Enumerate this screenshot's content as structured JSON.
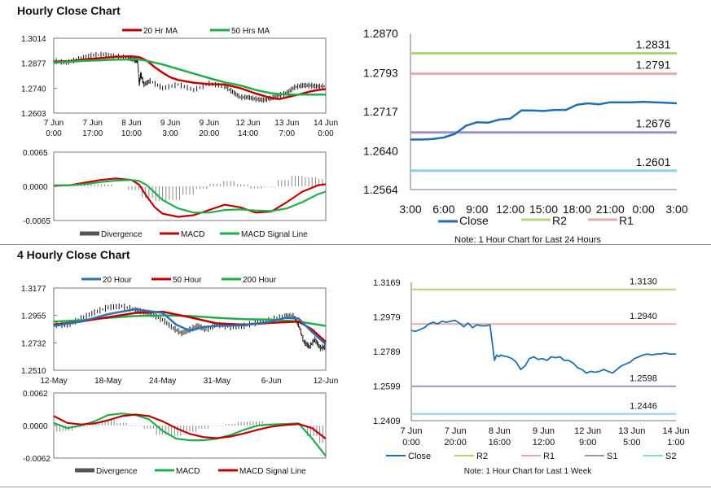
{
  "sections": {
    "hourly_title": "Hourly Close Chart",
    "four_hourly_title": "4 Hourly Close Chart"
  },
  "colors": {
    "price": "#111111",
    "red": "#c00000",
    "green": "#1fae4b",
    "blue": "#2e6fb7",
    "divergence": "#888888",
    "r2": "#b5d37c",
    "r1": "#e8a9a9",
    "s1": "#a090c0",
    "s2": "#8fd0e0",
    "close": "#1f6fb5"
  },
  "chart_data": [
    {
      "id": "hourly_price",
      "type": "line",
      "legend": [
        "20 Hr MA",
        "50 Hrs MA"
      ],
      "yticks": [
        "1.3014",
        "1.2877",
        "1.2740",
        "1.2603"
      ],
      "ylim": [
        1.2603,
        1.3014
      ],
      "xticks": [
        [
          "7 Jun",
          "0:00"
        ],
        [
          "7 Jun",
          "17:00"
        ],
        [
          "8 Jun",
          "10:00"
        ],
        [
          "9 Jun",
          "3:00"
        ],
        [
          "9 Jun",
          "20:00"
        ],
        [
          "12 Jun",
          "14:00"
        ],
        [
          "13 Jun",
          "7:00"
        ],
        [
          "14 Jun",
          "0:00"
        ]
      ],
      "xlim": [
        0,
        175
      ],
      "series": [
        {
          "name": "20 Hr MA",
          "color": "red",
          "x": [
            0,
            10,
            20,
            30,
            40,
            50,
            55,
            60,
            65,
            70,
            75,
            80,
            90,
            100,
            110,
            120,
            130,
            140,
            145,
            150,
            155,
            160,
            165,
            170,
            175
          ],
          "y": [
            1.2885,
            1.2888,
            1.2898,
            1.2905,
            1.2912,
            1.2915,
            1.291,
            1.289,
            1.2855,
            1.2825,
            1.28,
            1.2785,
            1.277,
            1.2762,
            1.276,
            1.274,
            1.271,
            1.2685,
            1.268,
            1.269,
            1.27,
            1.271,
            1.2722,
            1.273,
            1.2735
          ]
        },
        {
          "name": "50 Hrs MA",
          "color": "green",
          "x": [
            0,
            10,
            20,
            30,
            40,
            50,
            55,
            60,
            70,
            80,
            90,
            100,
            110,
            120,
            130,
            140,
            150,
            160,
            170,
            175
          ],
          "y": [
            1.288,
            1.2885,
            1.289,
            1.2893,
            1.2897,
            1.2898,
            1.2897,
            1.289,
            1.287,
            1.2845,
            1.282,
            1.2795,
            1.2772,
            1.2755,
            1.273,
            1.2712,
            1.2705,
            1.2705,
            1.2705,
            1.2705
          ]
        },
        {
          "name": "price",
          "color": "price",
          "x": [
            0,
            8,
            16,
            24,
            32,
            40,
            48,
            52,
            54,
            55,
            56,
            58,
            62,
            70,
            80,
            90,
            100,
            110,
            115,
            120,
            125,
            130,
            135,
            140,
            145,
            150,
            155,
            160,
            165,
            170,
            175
          ],
          "y": [
            1.289,
            1.288,
            1.29,
            1.292,
            1.2925,
            1.2915,
            1.2905,
            1.2895,
            1.289,
            1.276,
            1.282,
            1.276,
            1.278,
            1.274,
            1.276,
            1.273,
            1.2765,
            1.275,
            1.272,
            1.269,
            1.269,
            1.268,
            1.2675,
            1.2685,
            1.27,
            1.2715,
            1.2745,
            1.2755,
            1.2755,
            1.275,
            1.275
          ]
        }
      ]
    },
    {
      "id": "hourly_macd",
      "type": "line",
      "legend": [
        "Divergence",
        "MACD",
        "MACD Signal Line"
      ],
      "yticks": [
        "0.0065",
        "0.0000",
        "-0.0065"
      ],
      "ylim": [
        -0.0065,
        0.0065
      ],
      "xlim": [
        0,
        175
      ],
      "series": [
        {
          "name": "MACD",
          "color": "red",
          "x": [
            0,
            10,
            20,
            30,
            40,
            50,
            55,
            60,
            65,
            70,
            80,
            90,
            100,
            110,
            120,
            130,
            140,
            150,
            160,
            170,
            175
          ],
          "y": [
            0.0001,
            0.0002,
            0.0007,
            0.0012,
            0.0015,
            0.0012,
            0.0003,
            -0.002,
            -0.004,
            -0.0052,
            -0.0058,
            -0.0055,
            -0.0045,
            -0.0035,
            -0.004,
            -0.005,
            -0.0048,
            -0.003,
            -0.001,
            0.0002,
            0.0004
          ]
        },
        {
          "name": "MACD Signal Line",
          "color": "green",
          "x": [
            0,
            10,
            20,
            30,
            40,
            50,
            55,
            60,
            65,
            70,
            80,
            90,
            100,
            110,
            120,
            130,
            140,
            150,
            160,
            170,
            175
          ],
          "y": [
            0.0002,
            0.0002,
            0.0004,
            0.0008,
            0.0011,
            0.0012,
            0.001,
            0.0002,
            -0.0012,
            -0.0026,
            -0.0042,
            -0.005,
            -0.005,
            -0.0045,
            -0.0044,
            -0.0046,
            -0.0047,
            -0.0042,
            -0.003,
            -0.0015,
            -0.001
          ]
        }
      ],
      "divergence": [
        0.0,
        0.0,
        0.0003,
        0.0004,
        0.0004,
        0.0,
        -0.0007,
        -0.0022,
        -0.0028,
        -0.0026,
        -0.0016,
        -0.0005,
        0.0005,
        0.001,
        0.0004,
        -0.0004,
        -0.0001,
        0.0012,
        0.002,
        0.0017,
        0.0014
      ]
    },
    {
      "id": "hourly_levels",
      "type": "line",
      "title_note": "Note: 1 Hour Chart for Last 24 Hours",
      "yticks": [
        "1.2870",
        "1.2793",
        "1.2717",
        "1.2640",
        "1.2564"
      ],
      "ylim": [
        1.2564,
        1.287
      ],
      "categories": [
        "3:00",
        "6:00",
        "9:00",
        "12:00",
        "15:00",
        "18:00",
        "21:00",
        "0:00",
        "3:00"
      ],
      "legend": [
        "Close",
        "R2",
        "R1"
      ],
      "levels": [
        {
          "name": "R2",
          "value": 1.2831,
          "label": "1.2831",
          "color": "r2"
        },
        {
          "name": "R1",
          "value": 1.2791,
          "label": "1.2791",
          "color": "r1"
        },
        {
          "name": "S1",
          "value": 1.2676,
          "label": "1.2676",
          "color": "s1"
        },
        {
          "name": "S2",
          "value": 1.2601,
          "label": "1.2601",
          "color": "s2"
        }
      ],
      "close": [
        1.2662,
        1.2662,
        1.2663,
        1.2666,
        1.2673,
        1.2689,
        1.2696,
        1.2695,
        1.2701,
        1.2703,
        1.2719,
        1.2719,
        1.2718,
        1.272,
        1.272,
        1.273,
        1.2733,
        1.2731,
        1.2735,
        1.2735,
        1.2735,
        1.2736,
        1.2735,
        1.2734,
        1.2733
      ]
    },
    {
      "id": "four_hourly_price",
      "type": "line",
      "legend": [
        "20 Hour",
        "50 Hour",
        "200 Hour"
      ],
      "yticks": [
        "1.3177",
        "1.2955",
        "1.2732",
        "1.2510"
      ],
      "ylim": [
        1.251,
        1.3177
      ],
      "xticks": [
        "12-May",
        "18-May",
        "24-May",
        "31-May",
        "6-Jun",
        "12-Jun"
      ],
      "xlim": [
        0,
        100
      ],
      "series": [
        {
          "name": "200 Hour",
          "color": "green",
          "x": [
            0,
            10,
            20,
            30,
            40,
            50,
            60,
            70,
            80,
            90,
            100
          ],
          "y": [
            1.2905,
            1.2915,
            1.2935,
            1.295,
            1.2955,
            1.295,
            1.2935,
            1.2925,
            1.292,
            1.2905,
            1.287
          ]
        },
        {
          "name": "50 Hour",
          "color": "red",
          "x": [
            0,
            10,
            20,
            30,
            40,
            50,
            60,
            70,
            80,
            90,
            95,
            100
          ],
          "y": [
            1.288,
            1.2905,
            1.294,
            1.2975,
            1.2985,
            1.294,
            1.289,
            1.288,
            1.2895,
            1.2905,
            1.284,
            1.274
          ]
        },
        {
          "name": "20 Hour",
          "color": "blue",
          "x": [
            0,
            10,
            20,
            30,
            40,
            45,
            50,
            55,
            60,
            70,
            80,
            85,
            90,
            95,
            100
          ],
          "y": [
            1.287,
            1.2905,
            1.2965,
            1.3005,
            1.2975,
            1.288,
            1.283,
            1.286,
            1.287,
            1.2875,
            1.2905,
            1.2935,
            1.293,
            1.282,
            1.272
          ]
        },
        {
          "name": "price",
          "color": "price",
          "x": [
            0,
            5,
            10,
            15,
            20,
            25,
            30,
            33,
            36,
            40,
            44,
            47,
            50,
            53,
            56,
            60,
            65,
            70,
            75,
            80,
            85,
            88,
            90,
            92,
            94,
            96,
            98,
            100
          ],
          "y": [
            1.288,
            1.2875,
            1.293,
            1.298,
            1.302,
            1.303,
            1.3,
            1.298,
            1.2965,
            1.292,
            1.285,
            1.281,
            1.284,
            1.287,
            1.284,
            1.288,
            1.286,
            1.287,
            1.29,
            1.292,
            1.295,
            1.295,
            1.288,
            1.274,
            1.27,
            1.276,
            1.269,
            1.27
          ]
        }
      ]
    },
    {
      "id": "four_hourly_macd",
      "type": "line",
      "legend": [
        "Divergence",
        "MACD",
        "MACD Signal Line"
      ],
      "yticks": [
        "0.0062",
        "0.0000",
        "-0.0062"
      ],
      "ylim": [
        -0.0062,
        0.0062
      ],
      "xlim": [
        0,
        100
      ],
      "series": [
        {
          "name": "MACD",
          "color": "green",
          "x": [
            0,
            5,
            10,
            15,
            20,
            25,
            30,
            35,
            40,
            45,
            50,
            55,
            60,
            65,
            70,
            75,
            80,
            85,
            90,
            95,
            100
          ],
          "y": [
            0.0005,
            -0.0005,
            0.0,
            0.0008,
            0.002,
            0.0023,
            0.002,
            0.0012,
            -0.001,
            -0.0025,
            -0.0028,
            -0.0028,
            -0.0025,
            -0.0018,
            -0.0008,
            0.0,
            0.0002,
            0.0003,
            0.0004,
            -0.0025,
            -0.0058
          ]
        },
        {
          "name": "MACD Signal Line",
          "color": "red",
          "x": [
            0,
            5,
            10,
            15,
            20,
            25,
            30,
            35,
            40,
            45,
            50,
            55,
            60,
            65,
            70,
            75,
            80,
            85,
            90,
            95,
            100
          ],
          "y": [
            0.0018,
            0.0005,
            0.0002,
            0.0004,
            0.001,
            0.0018,
            0.0021,
            0.0018,
            0.0008,
            -0.0005,
            -0.0016,
            -0.0022,
            -0.0024,
            -0.0021,
            -0.0015,
            -0.0008,
            -0.0002,
            0.0001,
            0.0003,
            -0.0005,
            -0.0025
          ]
        }
      ],
      "divergence": [
        -0.0012,
        -0.001,
        -0.0002,
        0.0004,
        0.001,
        0.0005,
        -0.0001,
        -0.0006,
        -0.0018,
        -0.002,
        -0.0012,
        -0.0006,
        -0.0001,
        0.0003,
        0.0007,
        0.0008,
        0.0004,
        0.0002,
        0.0001,
        -0.002,
        -0.0033
      ]
    },
    {
      "id": "four_hourly_levels",
      "type": "line",
      "title_note": "Note: 1 Hour Chart for Last 1 Week",
      "yticks": [
        "1.3169",
        "1.2979",
        "1.2789",
        "1.2599",
        "1.2409"
      ],
      "ylim": [
        1.2409,
        1.3169
      ],
      "xticks": [
        [
          "7 Jun",
          "0:00"
        ],
        [
          "7 Jun",
          "20:00"
        ],
        [
          "8 Jun",
          "16:00"
        ],
        [
          "9 Jun",
          "12:00"
        ],
        [
          "12 Jun",
          "9:00"
        ],
        [
          "13 Jun",
          "5:00"
        ],
        [
          "14 Jun",
          "1:00"
        ]
      ],
      "xlim": [
        0,
        121
      ],
      "legend": [
        "Close",
        "R2",
        "R1",
        "S1",
        "S2"
      ],
      "levels": [
        {
          "name": "R2",
          "value": 1.313,
          "label": "1.3130",
          "color": "r2"
        },
        {
          "name": "R1",
          "value": 1.294,
          "label": "1.2940",
          "color": "r1"
        },
        {
          "name": "S1",
          "value": 1.2598,
          "label": "1.2598",
          "color": "s1"
        },
        {
          "name": "S2",
          "value": 1.2446,
          "label": "1.2446",
          "color": "s2"
        }
      ],
      "close_x": [
        0,
        2,
        4,
        6,
        8,
        10,
        12,
        14,
        16,
        18,
        20,
        22,
        24,
        26,
        28,
        30,
        32,
        34,
        36,
        38,
        39,
        40,
        41,
        42,
        44,
        46,
        48,
        50,
        52,
        54,
        56,
        58,
        60,
        62,
        64,
        66,
        68,
        70,
        72,
        74,
        76,
        78,
        80,
        82,
        84,
        86,
        88,
        90,
        92,
        94,
        96,
        98,
        100,
        102,
        104,
        106,
        108,
        110,
        112,
        114,
        116,
        118,
        121
      ],
      "close_y": [
        1.2905,
        1.29,
        1.291,
        1.292,
        1.294,
        1.295,
        1.294,
        1.2955,
        1.295,
        1.2955,
        1.296,
        1.2945,
        1.2925,
        1.2945,
        1.292,
        1.2935,
        1.293,
        1.293,
        1.2935,
        1.274,
        1.277,
        1.276,
        1.277,
        1.2765,
        1.276,
        1.275,
        1.273,
        1.269,
        1.271,
        1.275,
        1.276,
        1.2745,
        1.275,
        1.274,
        1.276,
        1.2755,
        1.276,
        1.274,
        1.274,
        1.2725,
        1.27,
        1.269,
        1.267,
        1.268,
        1.2675,
        1.268,
        1.269,
        1.268,
        1.267,
        1.269,
        1.271,
        1.272,
        1.273,
        1.275,
        1.276,
        1.277,
        1.2775,
        1.277,
        1.2775,
        1.2775,
        1.278,
        1.2775,
        1.2775
      ]
    }
  ]
}
